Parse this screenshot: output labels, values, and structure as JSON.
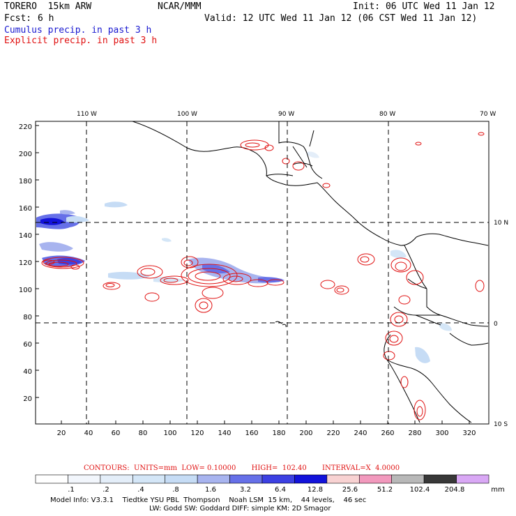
{
  "header": {
    "model": "TORERO  15km ARW",
    "org": "NCAR/MMM",
    "init": "Init: 06 UTC Wed 11 Jan 12",
    "fcst_label": "Fcst:",
    "fcst_value": "6 h",
    "valid": "Valid: 12 UTC Wed 11 Jan 12 (06 CST Wed 11 Jan 12)",
    "field1": "Cumulus precip. in past 3 h",
    "field2": "Explicit precip. in past 3 h"
  },
  "map": {
    "lon_labels": [
      "110 W",
      "100 W",
      "90 W",
      "80 W",
      "70 W"
    ],
    "lat_labels": [
      "10 N",
      "0",
      "10 S"
    ],
    "x_ticks": [
      "20",
      "40",
      "60",
      "80",
      "100",
      "120",
      "140",
      "160",
      "180",
      "200",
      "220",
      "240",
      "260",
      "280",
      "300",
      "320"
    ],
    "y_ticks": [
      "20",
      "40",
      "60",
      "80",
      "100",
      "120",
      "140",
      "160",
      "180",
      "200",
      "220"
    ],
    "colors": {
      "coast": "#000000",
      "contour": "#e01010",
      "grid": "#000000"
    }
  },
  "legend": {
    "title": "CONTOURS:  UNITS=mm  LOW= 0.10000       HIGH=  102.40       INTERVAL=X  4.0000",
    "labels": [
      ".1",
      ".2",
      ".4",
      ".8",
      "1.6",
      "3.2",
      "6.4",
      "12.8",
      "25.6",
      "51.2",
      "102.4",
      "204.8"
    ],
    "unit": "mm",
    "colors": [
      "#ffffff",
      "#f2f6fc",
      "#e4eef9",
      "#d4e6f7",
      "#c6dcf5",
      "#a8b4ef",
      "#6670e8",
      "#3c40e2",
      "#1212da",
      "#f8d2d2",
      "#f299bd",
      "#b8b8b8",
      "#383838",
      "#d9a8f5"
    ]
  },
  "footer": {
    "line1": "Model Info: V3.3.1    Tiedtke YSU PBL  Thompson    Noah LSM  15 km,    44 levels,    46 sec",
    "line2": "LW: Godd SW: Goddard DIFF: simple KM: 2D Smagor"
  }
}
